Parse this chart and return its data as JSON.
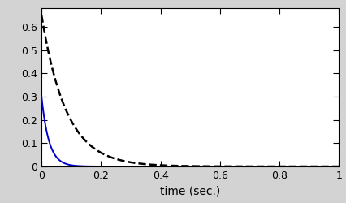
{
  "title": "",
  "xlabel": "time (sec.)",
  "ylabel": "",
  "xlim": [
    0,
    1
  ],
  "ylim": [
    0,
    0.68
  ],
  "yticks": [
    0,
    0.1,
    0.2,
    0.3,
    0.4,
    0.5,
    0.6
  ],
  "xticks": [
    0,
    0.2,
    0.4,
    0.6,
    0.8,
    1.0
  ],
  "blue_line_color": "#0000cc",
  "dashed_line_color": "#000000",
  "blue_decay": 40,
  "blue_amplitude": 0.3,
  "dashed_decay": 12,
  "dashed_amplitude": 0.65,
  "line_width": 1.4,
  "dashed_linewidth": 1.8,
  "background_color": "#ffffff",
  "outer_background": "#d3d3d3",
  "xlabel_fontsize": 10,
  "tick_fontsize": 9
}
